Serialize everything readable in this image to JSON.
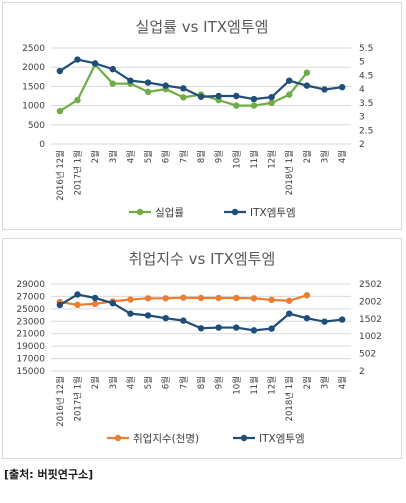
{
  "chart_data": [
    {
      "type": "line",
      "title": "실업률 vs ITX엠투엠",
      "categories": [
        "2016년 12월",
        "2017년 1월",
        "2월",
        "3월",
        "4월",
        "5월",
        "6월",
        "7월",
        "8월",
        "9월",
        "10월",
        "11월",
        "12월",
        "2018년 1월",
        "2월",
        "3월",
        "4월"
      ],
      "series": [
        {
          "name": "실업률",
          "axis": "right",
          "color": "#70AD47",
          "values": [
            3.2,
            3.6,
            4.9,
            4.2,
            4.2,
            3.9,
            4.0,
            3.7,
            3.8,
            3.6,
            3.4,
            3.4,
            3.5,
            3.8,
            4.6,
            null,
            null
          ]
        },
        {
          "name": "ITX엠투엠",
          "axis": "left",
          "color": "#1F4E79",
          "values": [
            1900,
            2200,
            2100,
            1950,
            1650,
            1600,
            1520,
            1450,
            1230,
            1250,
            1250,
            1170,
            1220,
            1650,
            1520,
            1420,
            1480
          ]
        }
      ],
      "y_left": {
        "min": 0,
        "max": 2500,
        "ticks": [
          "0",
          "500",
          "1000",
          "1500",
          "2000",
          "2500"
        ]
      },
      "y_right": {
        "min": 2,
        "max": 5.5,
        "ticks": [
          "2",
          "2.5",
          "3",
          "3.5",
          "4",
          "4.5",
          "5",
          "5.5"
        ]
      },
      "grid": true,
      "legend_position": "bottom"
    },
    {
      "type": "line",
      "title": "취업지수 vs ITX엠투엠",
      "categories": [
        "2016년 12월",
        "2017년 1월",
        "2월",
        "3월",
        "4월",
        "5월",
        "6월",
        "7월",
        "8월",
        "9월",
        "10월",
        "11월",
        "12월",
        "2018년 1월",
        "2월",
        "3월",
        "4월"
      ],
      "series": [
        {
          "name": "취업지수(천명)",
          "axis": "left",
          "color": "#ED7D31",
          "values": [
            26100,
            25650,
            25800,
            26200,
            26500,
            26700,
            26700,
            26800,
            26750,
            26750,
            26750,
            26700,
            26450,
            26300,
            27200,
            null,
            null
          ]
        },
        {
          "name": "ITX엠투엠",
          "axis": "right",
          "color": "#1F4E79",
          "values": [
            1900,
            2200,
            2100,
            1950,
            1650,
            1600,
            1520,
            1450,
            1230,
            1250,
            1250,
            1170,
            1220,
            1650,
            1520,
            1420,
            1480
          ]
        }
      ],
      "y_left": {
        "min": 15000,
        "max": 29000,
        "ticks": [
          "15000",
          "17000",
          "19000",
          "21000",
          "23000",
          "25000",
          "27000",
          "29000"
        ]
      },
      "y_right": {
        "min": 2,
        "max": 2502,
        "ticks": [
          "2",
          "502",
          "1002",
          "1502",
          "2002",
          "2502"
        ]
      },
      "grid": true,
      "legend_position": "bottom"
    }
  ],
  "source_note": "[출처: 버핏연구소]"
}
